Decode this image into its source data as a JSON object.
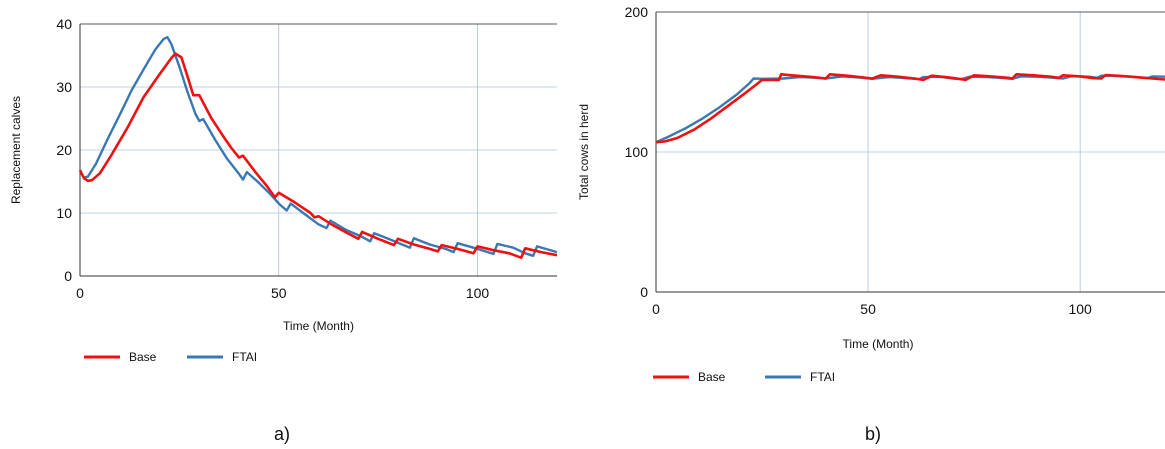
{
  "chart_data": [
    {
      "type": "line",
      "panel_label": "a)",
      "xlabel": "Time (Month)",
      "ylabel": "Replacement calves",
      "xlim": [
        0,
        120
      ],
      "ylim": [
        0,
        40
      ],
      "xticks": [
        0,
        50,
        100
      ],
      "yticks": [
        0,
        10,
        20,
        30,
        40
      ],
      "grid": true,
      "legend_position": "bottom-left",
      "series": [
        {
          "name": "Base",
          "color": "#ee1111",
          "points": [
            [
              0,
              16.8
            ],
            [
              1,
              15.5
            ],
            [
              2,
              15.1
            ],
            [
              3,
              15.2
            ],
            [
              5,
              16.3
            ],
            [
              8,
              19.3
            ],
            [
              12,
              23.6
            ],
            [
              16,
              28.4
            ],
            [
              20,
              32.0
            ],
            [
              23,
              34.6
            ],
            [
              24,
              35.3
            ],
            [
              25.5,
              34.7
            ],
            [
              27,
              31.8
            ],
            [
              28.5,
              28.7
            ],
            [
              30,
              28.7
            ],
            [
              33,
              25.1
            ],
            [
              36,
              22.2
            ],
            [
              38,
              20.4
            ],
            [
              40,
              18.8
            ],
            [
              41,
              19.1
            ],
            [
              44,
              16.6
            ],
            [
              47,
              14.3
            ],
            [
              49,
              12.5
            ],
            [
              50,
              13.2
            ],
            [
              54,
              11.7
            ],
            [
              58,
              10.0
            ],
            [
              59,
              9.3
            ],
            [
              60,
              9.5
            ],
            [
              63,
              8.3
            ],
            [
              67,
              6.9
            ],
            [
              70,
              5.9
            ],
            [
              71,
              7.0
            ],
            [
              75,
              5.9
            ],
            [
              79,
              4.9
            ],
            [
              80,
              5.9
            ],
            [
              84,
              5.0
            ],
            [
              88,
              4.3
            ],
            [
              90,
              3.9
            ],
            [
              91,
              4.9
            ],
            [
              95,
              4.3
            ],
            [
              99,
              3.6
            ],
            [
              100,
              4.7
            ],
            [
              104,
              4.1
            ],
            [
              108,
              3.6
            ],
            [
              111,
              2.9
            ],
            [
              112,
              4.4
            ],
            [
              116,
              3.8
            ],
            [
              120,
              3.3
            ]
          ]
        },
        {
          "name": "FTAI",
          "color": "#3a78b4",
          "points": [
            [
              1,
              15.6
            ],
            [
              2,
              15.8
            ],
            [
              4,
              17.8
            ],
            [
              7,
              21.8
            ],
            [
              10,
              25.6
            ],
            [
              13,
              29.5
            ],
            [
              16,
              32.8
            ],
            [
              19,
              36.0
            ],
            [
              21,
              37.6
            ],
            [
              22,
              37.9
            ],
            [
              23,
              36.8
            ],
            [
              25,
              33.2
            ],
            [
              27,
              29.3
            ],
            [
              29,
              25.8
            ],
            [
              30,
              24.6
            ],
            [
              31,
              24.9
            ],
            [
              34,
              21.6
            ],
            [
              37,
              18.6
            ],
            [
              40,
              16.2
            ],
            [
              41,
              15.3
            ],
            [
              42,
              16.5
            ],
            [
              45,
              14.8
            ],
            [
              48,
              12.9
            ],
            [
              50,
              11.5
            ],
            [
              52,
              10.4
            ],
            [
              53,
              11.5
            ],
            [
              57,
              9.6
            ],
            [
              60,
              8.2
            ],
            [
              62,
              7.6
            ],
            [
              63,
              8.8
            ],
            [
              67,
              7.3
            ],
            [
              71,
              6.2
            ],
            [
              73,
              5.5
            ],
            [
              74,
              6.8
            ],
            [
              78,
              5.8
            ],
            [
              81,
              5.0
            ],
            [
              83,
              4.5
            ],
            [
              84,
              6.0
            ],
            [
              88,
              5.0
            ],
            [
              92,
              4.3
            ],
            [
              94,
              3.8
            ],
            [
              95,
              5.2
            ],
            [
              99,
              4.5
            ],
            [
              102,
              3.9
            ],
            [
              104,
              3.5
            ],
            [
              105,
              5.1
            ],
            [
              109,
              4.5
            ],
            [
              112,
              3.6
            ],
            [
              114,
              3.2
            ],
            [
              115,
              4.7
            ],
            [
              120,
              3.8
            ]
          ]
        }
      ]
    },
    {
      "type": "line",
      "panel_label": "b)",
      "xlabel": "Time (Month)",
      "ylabel": "Total cows in herd",
      "xlim": [
        0,
        120
      ],
      "ylim": [
        0,
        200
      ],
      "xticks": [
        0,
        50,
        100
      ],
      "yticks": [
        0,
        100,
        200
      ],
      "grid": true,
      "legend_position": "bottom-left",
      "series": [
        {
          "name": "Base",
          "color": "#ee1111",
          "points": [
            [
              0,
              107
            ],
            [
              2,
              107.5
            ],
            [
              5,
              110
            ],
            [
              9,
              116
            ],
            [
              13,
              124
            ],
            [
              17,
              133
            ],
            [
              21,
              142
            ],
            [
              24,
              149
            ],
            [
              25,
              151.5
            ],
            [
              27,
              151.5
            ],
            [
              29,
              151.5
            ],
            [
              29.5,
              155.5
            ],
            [
              33,
              154.5
            ],
            [
              37,
              153.5
            ],
            [
              40,
              152.5
            ],
            [
              41,
              155.5
            ],
            [
              45,
              154.5
            ],
            [
              49,
              153.2
            ],
            [
              51,
              152.5
            ],
            [
              53,
              154.8
            ],
            [
              57,
              153.8
            ],
            [
              61,
              152.5
            ],
            [
              63,
              151.5
            ],
            [
              65,
              154.5
            ],
            [
              69,
              153.3
            ],
            [
              72,
              152
            ],
            [
              73,
              151.5
            ],
            [
              75,
              154.8
            ],
            [
              79,
              154
            ],
            [
              83,
              153
            ],
            [
              84,
              152.5
            ],
            [
              85,
              155.5
            ],
            [
              89,
              154.8
            ],
            [
              93,
              153.8
            ],
            [
              95,
              153
            ],
            [
              96,
              154.8
            ],
            [
              100,
              154
            ],
            [
              103,
              152.8
            ],
            [
              105,
              152.5
            ],
            [
              106,
              155
            ],
            [
              110,
              154.3
            ],
            [
              114,
              153.3
            ],
            [
              117,
              152.5
            ],
            [
              120,
              151.8
            ]
          ]
        },
        {
          "name": "FTAI",
          "color": "#3a78b4",
          "points": [
            [
              0,
              107
            ],
            [
              3,
              111
            ],
            [
              7,
              117
            ],
            [
              11,
              124
            ],
            [
              15,
              132
            ],
            [
              19,
              141
            ],
            [
              22,
              149
            ],
            [
              23,
              152.5
            ],
            [
              25,
              152.3
            ],
            [
              30,
              152.5
            ],
            [
              34,
              153.5
            ],
            [
              38,
              153
            ],
            [
              40,
              152.5
            ],
            [
              44,
              154
            ],
            [
              48,
              153.2
            ],
            [
              51,
              152.3
            ],
            [
              55,
              153.5
            ],
            [
              59,
              152.7
            ],
            [
              62,
              152
            ],
            [
              63,
              153.5
            ],
            [
              67,
              153.7
            ],
            [
              70,
              152.5
            ],
            [
              72,
              152
            ],
            [
              74,
              153.8
            ],
            [
              78,
              153.5
            ],
            [
              82,
              152.8
            ],
            [
              84,
              152.2
            ],
            [
              86,
              154
            ],
            [
              90,
              153.8
            ],
            [
              94,
              153
            ],
            [
              96,
              152.5
            ],
            [
              98,
              154.2
            ],
            [
              102,
              153.8
            ],
            [
              104,
              153
            ],
            [
              105,
              154.5
            ],
            [
              109,
              154.2
            ],
            [
              113,
              153.5
            ],
            [
              116,
              152.8
            ],
            [
              117,
              154
            ],
            [
              120,
              153.8
            ]
          ]
        }
      ]
    }
  ]
}
